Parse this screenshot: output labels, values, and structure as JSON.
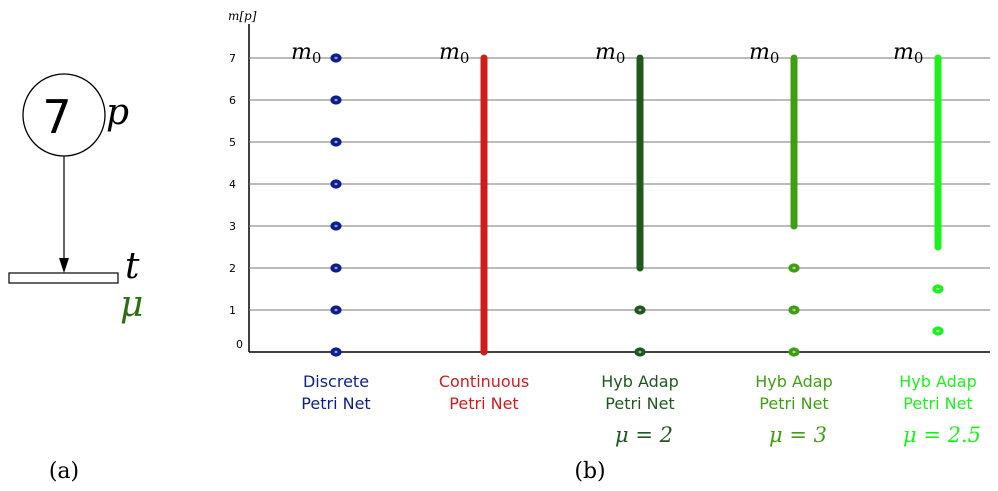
{
  "left": {
    "place_tokens": "7",
    "place_label": "p",
    "transition_label": "t",
    "rate_label": "μ",
    "rate_color": "#2d6e10",
    "caption": "(a)"
  },
  "right": {
    "caption": "(b)",
    "chart_data": {
      "type": "scatter",
      "ylabel": "m[p]",
      "ylim": [
        0,
        7
      ],
      "yticks": [
        "0",
        "1",
        "2",
        "3",
        "4",
        "5",
        "6",
        "7"
      ],
      "initial_marking_label": "m0",
      "grid": true,
      "series": [
        {
          "name_lines": [
            "Discrete",
            "Petri Net"
          ],
          "mu": "",
          "color": "#0d1e8c",
          "points": [
            0,
            1,
            2,
            3,
            4,
            5,
            6,
            7
          ],
          "continuous_range": null
        },
        {
          "name_lines": [
            "Continuous",
            "Petri Net"
          ],
          "mu": "",
          "color": "#d11c1c",
          "points": [],
          "continuous_range": [
            0,
            7
          ]
        },
        {
          "name_lines": [
            "Hyb Adap",
            "Petri Net"
          ],
          "mu": "μ = 2",
          "color": "#1f5720",
          "points": [
            0,
            1
          ],
          "continuous_range": [
            2,
            7
          ]
        },
        {
          "name_lines": [
            "Hyb Adap",
            "Petri Net"
          ],
          "mu": "μ = 3",
          "color": "#3f9f12",
          "points": [
            0,
            1,
            2
          ],
          "continuous_range": [
            3,
            7
          ]
        },
        {
          "name_lines": [
            "Hyb Adap",
            "Petri Net"
          ],
          "mu": "μ = 2.5",
          "color": "#1df01d",
          "points": [
            0.5,
            1.5
          ],
          "continuous_range": [
            2.5,
            7
          ]
        }
      ]
    }
  }
}
